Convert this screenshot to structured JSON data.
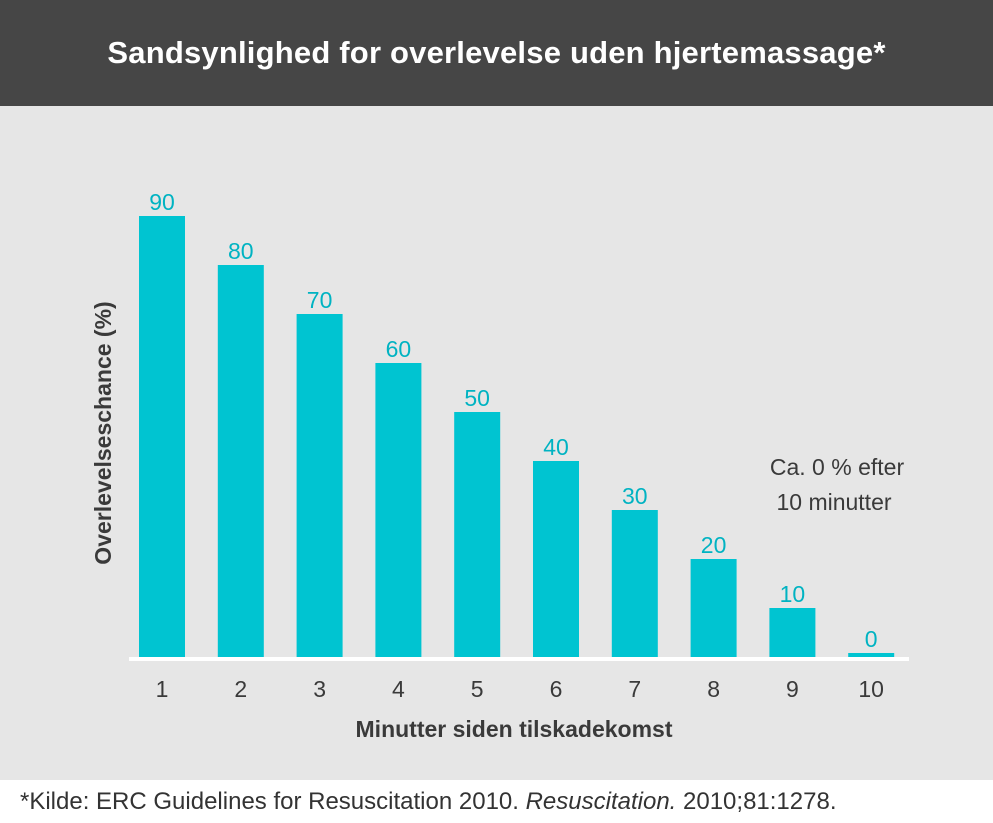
{
  "header": {
    "title": "Sandsynlighed for overlevelse uden hjertemassage*"
  },
  "chart_data": {
    "type": "bar",
    "categories": [
      "1",
      "2",
      "3",
      "4",
      "5",
      "6",
      "7",
      "8",
      "9",
      "10"
    ],
    "values": [
      90,
      80,
      70,
      60,
      50,
      40,
      30,
      20,
      10,
      0
    ],
    "data_labels": [
      "90",
      "80",
      "70",
      "60",
      "50",
      "40",
      "30",
      "20",
      "10",
      "0"
    ],
    "xlabel": "Minutter siden tilskadekomst",
    "ylabel": "Overlevelseschance (%)",
    "ylim": [
      0,
      100
    ],
    "grid": false,
    "legend": "none",
    "annotation": {
      "line1": "Ca. 0 % efter",
      "line2": "10 minutter"
    },
    "colors": {
      "bar": "#00c4d1",
      "data_label": "#00b3c2",
      "baseline": "#ffffff",
      "tick_label": "#3a3a3a",
      "axis_title": "#3a3a3a",
      "panel_background": "#e6e6e6",
      "header_background": "#464646"
    }
  },
  "footnote": {
    "prefix": "*Kilde: ERC Guidelines for Resuscitation 2010. ",
    "journal": "Resuscitation.",
    "suffix": " 2010;81:1278."
  }
}
